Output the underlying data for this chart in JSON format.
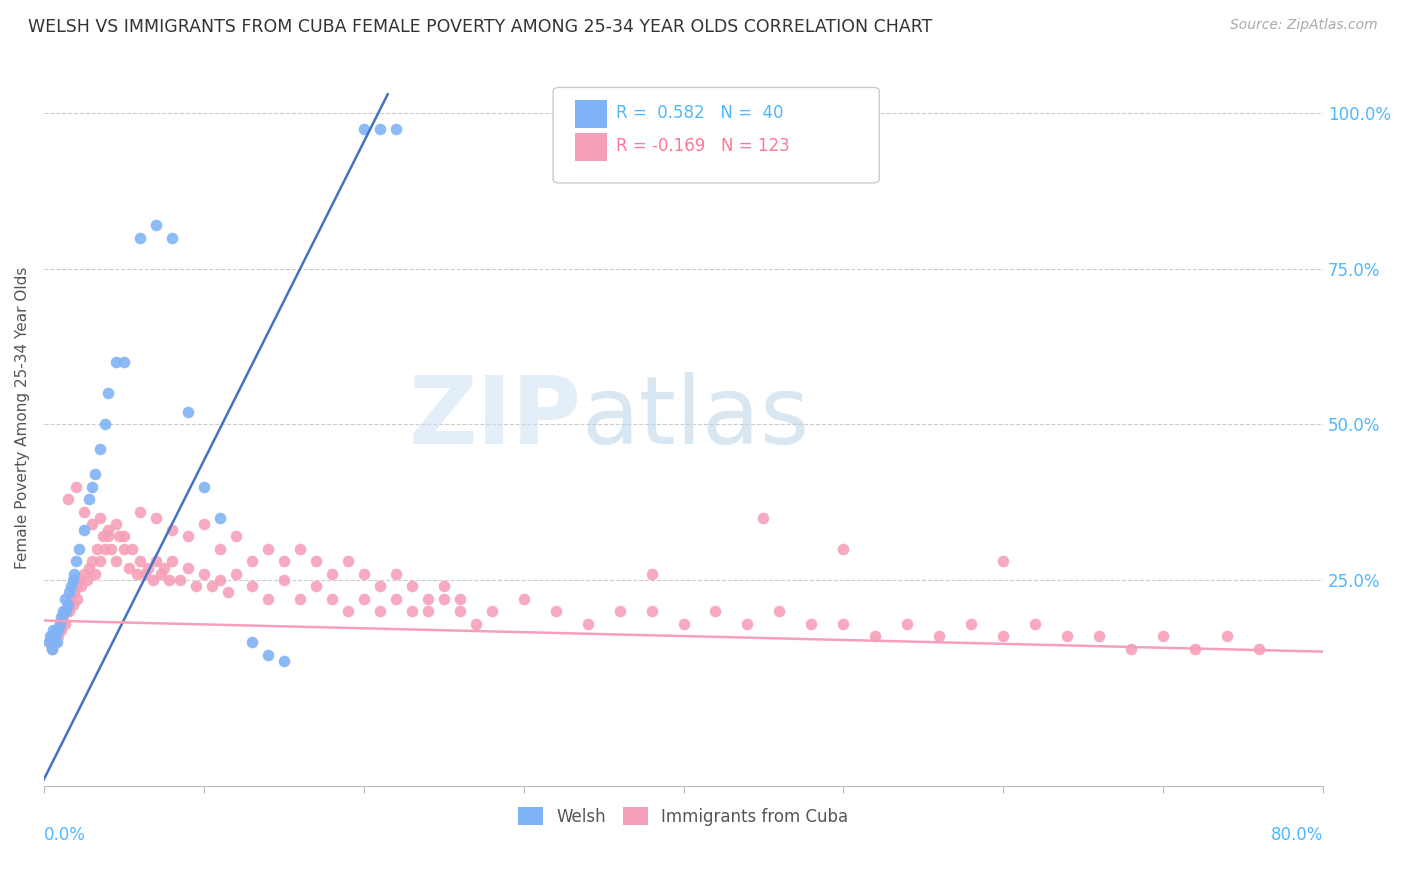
{
  "title": "WELSH VS IMMIGRANTS FROM CUBA FEMALE POVERTY AMONG 25-34 YEAR OLDS CORRELATION CHART",
  "source": "Source: ZipAtlas.com",
  "ylabel": "Female Poverty Among 25-34 Year Olds",
  "ytick_labels": [
    "100.0%",
    "75.0%",
    "50.0%",
    "25.0%"
  ],
  "ytick_values": [
    1.0,
    0.75,
    0.5,
    0.25
  ],
  "xlim": [
    0.0,
    0.8
  ],
  "ylim": [
    -0.08,
    1.1
  ],
  "watermark_zip": "ZIP",
  "watermark_atlas": "atlas",
  "welsh_R": 0.582,
  "welsh_N": 40,
  "cuba_R": -0.169,
  "cuba_N": 123,
  "welsh_color": "#7eb3f5",
  "cuba_color": "#f5a0b8",
  "line_welsh_color": "#4472c4",
  "line_cuba_color": "#f5a0b8",
  "welsh_line_x": [
    0.0,
    0.215
  ],
  "welsh_line_y": [
    -0.07,
    1.03
  ],
  "cuba_line_x": [
    0.0,
    0.8
  ],
  "cuba_line_y": [
    0.185,
    0.135
  ],
  "welsh_scatter_x": [
    0.003,
    0.004,
    0.005,
    0.006,
    0.007,
    0.008,
    0.009,
    0.01,
    0.011,
    0.012,
    0.013,
    0.014,
    0.015,
    0.016,
    0.017,
    0.018,
    0.019,
    0.02,
    0.022,
    0.025,
    0.028,
    0.03,
    0.032,
    0.035,
    0.038,
    0.04,
    0.045,
    0.05,
    0.06,
    0.07,
    0.08,
    0.09,
    0.1,
    0.11,
    0.13,
    0.14,
    0.15,
    0.2,
    0.21,
    0.22
  ],
  "welsh_scatter_y": [
    0.15,
    0.16,
    0.14,
    0.17,
    0.16,
    0.15,
    0.17,
    0.18,
    0.19,
    0.2,
    0.22,
    0.2,
    0.21,
    0.23,
    0.24,
    0.25,
    0.26,
    0.28,
    0.3,
    0.33,
    0.38,
    0.4,
    0.42,
    0.46,
    0.5,
    0.55,
    0.6,
    0.6,
    0.8,
    0.82,
    0.8,
    0.52,
    0.4,
    0.35,
    0.15,
    0.13,
    0.12,
    0.975,
    0.975,
    0.975
  ],
  "cuba_scatter_x": [
    0.003,
    0.005,
    0.006,
    0.007,
    0.008,
    0.009,
    0.01,
    0.011,
    0.012,
    0.013,
    0.014,
    0.015,
    0.016,
    0.017,
    0.018,
    0.019,
    0.02,
    0.021,
    0.022,
    0.023,
    0.025,
    0.027,
    0.028,
    0.03,
    0.032,
    0.033,
    0.035,
    0.037,
    0.038,
    0.04,
    0.042,
    0.045,
    0.047,
    0.05,
    0.053,
    0.055,
    0.058,
    0.06,
    0.063,
    0.065,
    0.068,
    0.07,
    0.073,
    0.075,
    0.078,
    0.08,
    0.085,
    0.09,
    0.095,
    0.1,
    0.105,
    0.11,
    0.115,
    0.12,
    0.13,
    0.14,
    0.15,
    0.16,
    0.17,
    0.18,
    0.19,
    0.2,
    0.21,
    0.22,
    0.23,
    0.24,
    0.25,
    0.26,
    0.27,
    0.28,
    0.3,
    0.32,
    0.34,
    0.36,
    0.38,
    0.4,
    0.42,
    0.44,
    0.46,
    0.48,
    0.5,
    0.52,
    0.54,
    0.56,
    0.58,
    0.6,
    0.62,
    0.64,
    0.66,
    0.68,
    0.7,
    0.72,
    0.74,
    0.76,
    0.015,
    0.02,
    0.025,
    0.03,
    0.035,
    0.04,
    0.045,
    0.05,
    0.06,
    0.07,
    0.08,
    0.09,
    0.1,
    0.11,
    0.12,
    0.13,
    0.14,
    0.15,
    0.16,
    0.17,
    0.18,
    0.19,
    0.2,
    0.21,
    0.22,
    0.23,
    0.24,
    0.25,
    0.26,
    0.38,
    0.45,
    0.5,
    0.6
  ],
  "cuba_scatter_y": [
    0.15,
    0.14,
    0.16,
    0.15,
    0.17,
    0.16,
    0.18,
    0.17,
    0.19,
    0.18,
    0.2,
    0.21,
    0.2,
    0.22,
    0.21,
    0.23,
    0.24,
    0.22,
    0.25,
    0.24,
    0.26,
    0.25,
    0.27,
    0.28,
    0.26,
    0.3,
    0.28,
    0.32,
    0.3,
    0.32,
    0.3,
    0.28,
    0.32,
    0.3,
    0.27,
    0.3,
    0.26,
    0.28,
    0.26,
    0.27,
    0.25,
    0.28,
    0.26,
    0.27,
    0.25,
    0.28,
    0.25,
    0.27,
    0.24,
    0.26,
    0.24,
    0.25,
    0.23,
    0.26,
    0.24,
    0.22,
    0.25,
    0.22,
    0.24,
    0.22,
    0.2,
    0.22,
    0.2,
    0.22,
    0.2,
    0.2,
    0.22,
    0.2,
    0.18,
    0.2,
    0.22,
    0.2,
    0.18,
    0.2,
    0.2,
    0.18,
    0.2,
    0.18,
    0.2,
    0.18,
    0.18,
    0.16,
    0.18,
    0.16,
    0.18,
    0.16,
    0.18,
    0.16,
    0.16,
    0.14,
    0.16,
    0.14,
    0.16,
    0.14,
    0.38,
    0.4,
    0.36,
    0.34,
    0.35,
    0.33,
    0.34,
    0.32,
    0.36,
    0.35,
    0.33,
    0.32,
    0.34,
    0.3,
    0.32,
    0.28,
    0.3,
    0.28,
    0.3,
    0.28,
    0.26,
    0.28,
    0.26,
    0.24,
    0.26,
    0.24,
    0.22,
    0.24,
    0.22,
    0.26,
    0.35,
    0.3,
    0.28
  ]
}
